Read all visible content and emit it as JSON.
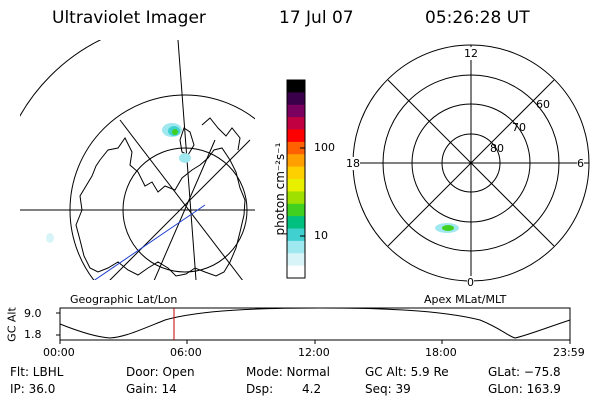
{
  "header": {
    "title": "Ultraviolet Imager",
    "date": "17 Jul 07",
    "time": "05:26:28 UT"
  },
  "colorbar": {
    "unit_label": "photon cm⁻²s⁻¹",
    "ticks": [
      "100",
      "10"
    ],
    "colors": [
      "#000000",
      "#3a004a",
      "#7a0060",
      "#c00040",
      "#ff0000",
      "#ff6000",
      "#ffa000",
      "#ffd000",
      "#e8f000",
      "#a0e000",
      "#40d020",
      "#00c080",
      "#40d0d0",
      "#a0e8f0",
      "#d8f4f8",
      "#ffffff"
    ]
  },
  "left_map": {
    "caption": "Geographic Lat/Lon"
  },
  "right_map": {
    "caption": "Apex MLat/MLT",
    "mlt_labels": [
      "12",
      "18",
      "6",
      "0"
    ],
    "lat_labels": [
      "60",
      "70",
      "80"
    ]
  },
  "altitude_plot": {
    "ylabel": "GC Alt",
    "yticks": [
      "9.0",
      "1.8"
    ],
    "xticks": [
      "00:00",
      "06:00",
      "12:00",
      "18:00",
      "23:59"
    ],
    "marker_color": "#c00000"
  },
  "info": {
    "flt": "Flt: LBHL",
    "door": "Door: Open",
    "mode": "Mode: Normal",
    "gc_alt": "GC Alt: 5.9 Re",
    "glat": "GLat: −75.8",
    "ip": "IP: 36.0",
    "gain": "Gain: 14",
    "dsp_label": "Dsp:",
    "dsp_value": "4.2",
    "seq": "Seq: 39",
    "glon": "GLon: 163.9"
  }
}
